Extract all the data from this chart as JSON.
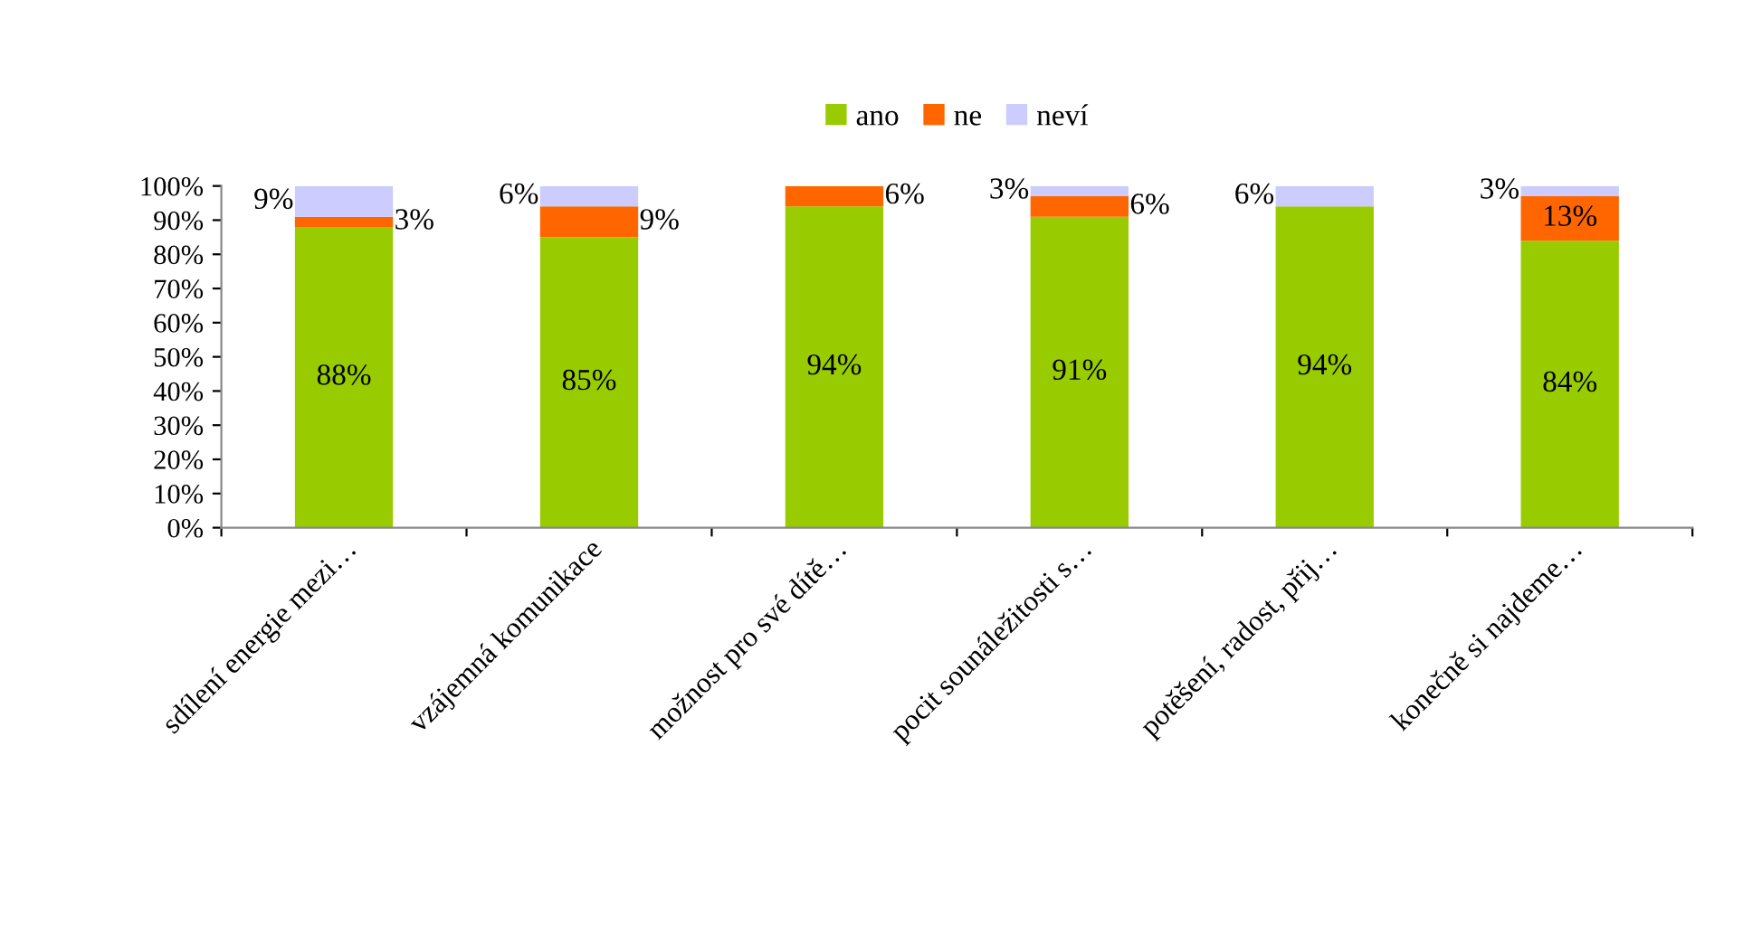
{
  "chart_data": {
    "type": "bar",
    "stacked": true,
    "categories": [
      "sdílení energie mezi…",
      "vzájemná komunikace",
      "možnost pro své dítě…",
      "pocit sounáležitosti s…",
      "potěšení, radost, přij…",
      "konečně si najdeme…"
    ],
    "series": [
      {
        "name": "ano",
        "color": "#99cc00",
        "values": [
          88,
          85,
          94,
          91,
          94,
          84
        ],
        "value_labels": [
          "88%",
          "85%",
          "94%",
          "91%",
          "94%",
          "84%"
        ]
      },
      {
        "name": "ne",
        "color": "#ff6600",
        "values": [
          3,
          9,
          6,
          6,
          0,
          13
        ],
        "value_labels": [
          "3%",
          "9%",
          "6%",
          "6%",
          null,
          "13%"
        ]
      },
      {
        "name": "neví",
        "color": "#ccccff",
        "values": [
          9,
          6,
          0,
          3,
          6,
          3
        ],
        "value_labels": [
          "9%",
          "6%",
          null,
          "3%",
          "6%",
          "3%"
        ]
      }
    ],
    "ylim": [
      0,
      100
    ],
    "yticks": [
      {
        "value": 0,
        "label": "0%"
      },
      {
        "value": 10,
        "label": "10%"
      },
      {
        "value": 20,
        "label": "20%"
      },
      {
        "value": 30,
        "label": "30%"
      },
      {
        "value": 40,
        "label": "40%"
      },
      {
        "value": 50,
        "label": "50%"
      },
      {
        "value": 60,
        "label": "60%"
      },
      {
        "value": 70,
        "label": "70%"
      },
      {
        "value": 80,
        "label": "80%"
      },
      {
        "value": 90,
        "label": "90%"
      },
      {
        "value": 100,
        "label": "100%"
      }
    ],
    "grid": false,
    "legend": "top"
  }
}
